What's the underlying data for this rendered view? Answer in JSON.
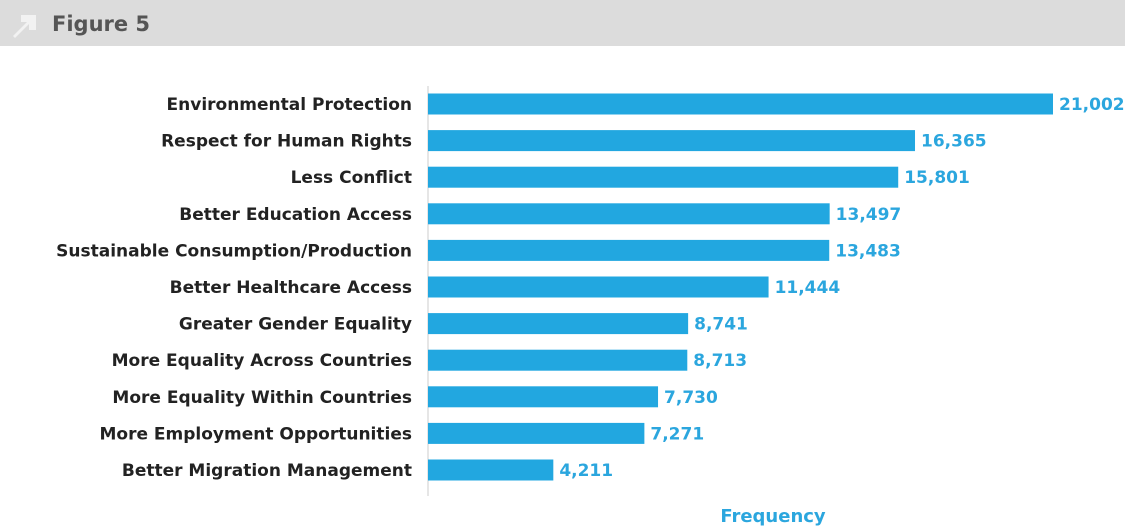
{
  "header": {
    "title": "Figure 5"
  },
  "chart_data": {
    "type": "bar",
    "orientation": "horizontal",
    "xlabel": "Frequency",
    "color": "#22a7e0",
    "categories": [
      "Environmental Protection",
      "Respect for Human Rights",
      "Less Conflict",
      "Better Education Access",
      "Sustainable Consumption/Production",
      "Better Healthcare Access",
      "Greater Gender Equality",
      "More Equality Across Countries",
      "More Equality Within Countries",
      "More Employment Opportunities",
      "Better Migration Management"
    ],
    "values": [
      21002,
      16365,
      15801,
      13497,
      13483,
      11444,
      8741,
      8713,
      7730,
      7271,
      4211
    ],
    "value_labels": [
      "21,002",
      "16,365",
      "15,801",
      "13,497",
      "13,483",
      "11,444",
      "8,741",
      "8,713",
      "7,730",
      "7,271",
      "4,211"
    ]
  }
}
